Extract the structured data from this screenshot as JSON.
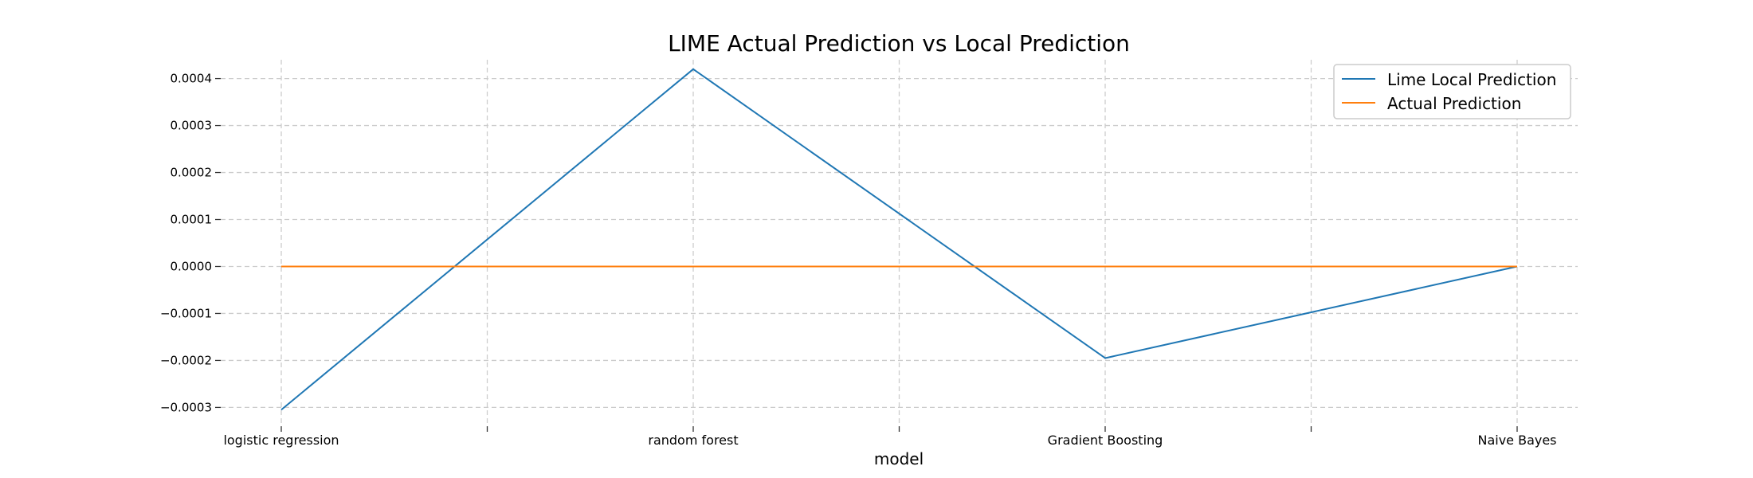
{
  "chart_data": {
    "type": "line",
    "title": "LIME Actual Prediction vs Local Prediction",
    "xlabel": "model",
    "ylabel": "",
    "categories": [
      "logistic regression",
      "random forest",
      "Gradient Boosting",
      "Naive Bayes"
    ],
    "x_ticks": [
      "logistic regression",
      "",
      "random forest",
      "",
      "Gradient Boosting",
      "",
      "Naive Bayes"
    ],
    "y_ticks": [
      "0.0004",
      "0.0003",
      "0.0002",
      "0.0001",
      "0.0000",
      "−0.0001",
      "−0.0002",
      "−0.0003"
    ],
    "y_tick_values": [
      0.0004,
      0.0003,
      0.0002,
      0.0001,
      0.0,
      -0.0001,
      -0.0002,
      -0.0003
    ],
    "ylim": [
      -0.00034,
      0.00044
    ],
    "grid": true,
    "legend_position": "top-right",
    "series": [
      {
        "name": "Lime Local Prediction",
        "color": "#1f77b4",
        "values": [
          -0.000305,
          0.00042,
          -0.000195,
          0.0
        ]
      },
      {
        "name": "Actual Prediction",
        "color": "#ff7f0e",
        "values": [
          0.0,
          0.0,
          0.0,
          0.0
        ]
      }
    ]
  }
}
